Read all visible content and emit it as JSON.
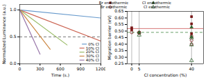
{
  "chart_data": [
    {
      "type": "line",
      "xlabel": "Time (s.)",
      "ylabel": "Normalized Luminance (a.u.)",
      "series": [
        {
          "name": "0% Cl",
          "color": "#6699cc",
          "x": [
            0,
            1200
          ],
          "values": [
            1.0,
            0.85
          ]
        },
        {
          "name": "10% Cl",
          "color": "#cc6655",
          "x": [
            0,
            1200
          ],
          "values": [
            1.0,
            0.42
          ]
        },
        {
          "name": "20% Cl",
          "color": "#99bb66",
          "x": [
            0,
            700
          ],
          "values": [
            1.0,
            0.35
          ]
        },
        {
          "name": "30% Cl",
          "color": "#cc8844",
          "x": [
            0,
            450
          ],
          "values": [
            1.0,
            0.27
          ]
        },
        {
          "name": "40% Cl",
          "color": "#9977aa",
          "x": [
            0,
            300
          ],
          "values": [
            1.0,
            0.18
          ]
        }
      ],
      "hlines": [
        {
          "y": 0.5,
          "color": "#555555",
          "line_style": "dashed"
        }
      ],
      "xlim": [
        0,
        1200
      ],
      "ylim": [
        0.0,
        1.1
      ],
      "xticks": [
        0,
        300,
        600,
        900,
        1200
      ],
      "yticks": [
        {
          "value": 0.0,
          "label": "0.0"
        },
        0.5,
        {
          "value": 1.0,
          "label": "1.0"
        }
      ],
      "legend": "lower right",
      "grid": false
    },
    {
      "type": "scatter",
      "xlabel": "Cl concentration (%)",
      "ylabel": "Migration barrier (eV)",
      "series": [
        {
          "name": "Br endothermic",
          "color": "#7a1a1a",
          "marker": "square",
          "x": [
            0,
            0,
            5,
            5,
            40,
            40,
            40
          ],
          "values": [
            0.525,
            0.51,
            0.49,
            0.485,
            0.61,
            0.555,
            0.48
          ]
        },
        {
          "name": "Br exothermic",
          "color": "#7a1a1a",
          "marker": "circle-open",
          "x": [
            0,
            5,
            5,
            40,
            40,
            40
          ],
          "values": [
            0.49,
            0.49,
            0.485,
            0.46,
            0.43,
            0.4
          ]
        },
        {
          "name": "Cl endothermic",
          "color": "#336633",
          "marker": "triangle",
          "x": [
            5,
            40,
            40
          ],
          "values": [
            0.49,
            0.53,
            0.455
          ]
        },
        {
          "name": "Cl exothermic",
          "color": "#336633",
          "marker": "triangle-open",
          "x": [
            5,
            40,
            40,
            40
          ],
          "values": [
            0.47,
            0.45,
            0.395,
            0.275
          ]
        }
      ],
      "vlines": {
        "x": [
          0,
          5,
          40
        ],
        "color": "#888888"
      },
      "hlines": [
        {
          "y": 0.519,
          "color": "#cc5555",
          "line_style": "solid"
        },
        {
          "y": 0.49,
          "color": "#448844",
          "line_style": "dashed"
        }
      ],
      "xlim": [
        -3,
        48
      ],
      "ylim": [
        0.25,
        0.65
      ],
      "xticks": [
        0,
        5,
        40
      ],
      "yticks": [
        0.25,
        {
          "value": 0.3,
          "label": "0.30"
        },
        0.35,
        {
          "value": 0.4,
          "label": "0.40"
        },
        0.45,
        {
          "value": 0.5,
          "label": "0.50"
        },
        0.55,
        {
          "value": 0.6,
          "label": "0.60"
        },
        0.65
      ],
      "legend": "upper left",
      "grid": false
    }
  ]
}
